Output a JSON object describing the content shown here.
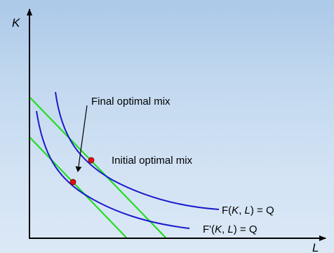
{
  "diagram": {
    "axes": {
      "y_label": "K",
      "x_label": "L"
    },
    "curves": {
      "original_isoquant": {
        "prefix": "F(",
        "var1": "K",
        "sep": ", ",
        "var2": "L",
        "suffix": ") = Q"
      },
      "new_isoquant": {
        "prefix": "F'(",
        "var1": "K",
        "sep": ", ",
        "var2": "L",
        "suffix": ") = Q"
      }
    },
    "points": {
      "initial": "Initial optimal mix",
      "final": "Final optimal mix"
    },
    "colors": {
      "isoquant": "#1a1acc",
      "isocost": "#22dd22",
      "point": "#dd1111",
      "axis": "#000000"
    }
  }
}
